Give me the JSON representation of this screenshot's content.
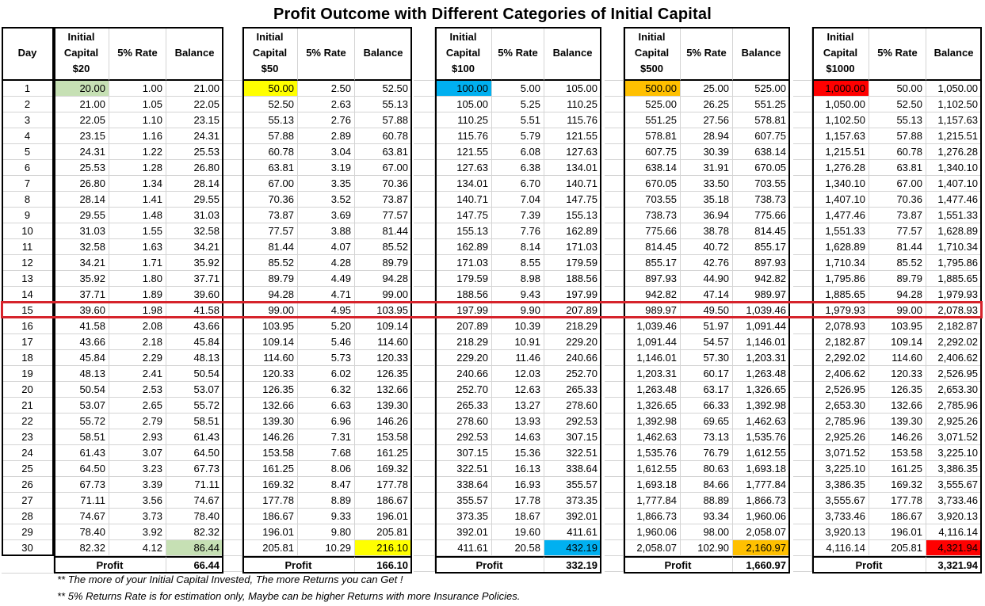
{
  "title": "Profit Outcome with Different Categories of Initial Capital",
  "day_header": "Day",
  "days": [
    1,
    2,
    3,
    4,
    5,
    6,
    7,
    8,
    9,
    10,
    11,
    12,
    13,
    14,
    15,
    16,
    17,
    18,
    19,
    20,
    21,
    22,
    23,
    24,
    25,
    26,
    27,
    28,
    29,
    30
  ],
  "highlighted_day": 15,
  "rate_header": "5% Rate",
  "balance_header": "Balance",
  "profit_label": "Profit",
  "colors": {
    "green": "#c6e0b4",
    "yellow": "#ffff00",
    "blue": "#00b0f0",
    "orange": "#ffc000",
    "red": "#ff0000"
  },
  "blocks": [
    {
      "capital_header": [
        "Initial",
        "Capital",
        "$20"
      ],
      "color": "green",
      "capital": [
        "20.00",
        "21.00",
        "22.05",
        "23.15",
        "24.31",
        "25.53",
        "26.80",
        "28.14",
        "29.55",
        "31.03",
        "32.58",
        "34.21",
        "35.92",
        "37.71",
        "39.60",
        "41.58",
        "43.66",
        "45.84",
        "48.13",
        "50.54",
        "53.07",
        "55.72",
        "58.51",
        "61.43",
        "64.50",
        "67.73",
        "71.11",
        "74.67",
        "78.40",
        "82.32"
      ],
      "rate": [
        "1.00",
        "1.05",
        "1.10",
        "1.16",
        "1.22",
        "1.28",
        "1.34",
        "1.41",
        "1.48",
        "1.55",
        "1.63",
        "1.71",
        "1.80",
        "1.89",
        "1.98",
        "2.08",
        "2.18",
        "2.29",
        "2.41",
        "2.53",
        "2.65",
        "2.79",
        "2.93",
        "3.07",
        "3.23",
        "3.39",
        "3.56",
        "3.73",
        "3.92",
        "4.12"
      ],
      "balance": [
        "21.00",
        "22.05",
        "23.15",
        "24.31",
        "25.53",
        "26.80",
        "28.14",
        "29.55",
        "31.03",
        "32.58",
        "34.21",
        "35.92",
        "37.71",
        "39.60",
        "41.58",
        "43.66",
        "45.84",
        "48.13",
        "50.54",
        "53.07",
        "55.72",
        "58.51",
        "61.43",
        "64.50",
        "67.73",
        "71.11",
        "74.67",
        "78.40",
        "82.32",
        "86.44"
      ],
      "profit": "66.44"
    },
    {
      "capital_header": [
        "Initial",
        "Capital",
        "$50"
      ],
      "color": "yellow",
      "capital": [
        "50.00",
        "52.50",
        "55.13",
        "57.88",
        "60.78",
        "63.81",
        "67.00",
        "70.36",
        "73.87",
        "77.57",
        "81.44",
        "85.52",
        "89.79",
        "94.28",
        "99.00",
        "103.95",
        "109.14",
        "114.60",
        "120.33",
        "126.35",
        "132.66",
        "139.30",
        "146.26",
        "153.58",
        "161.25",
        "169.32",
        "177.78",
        "186.67",
        "196.01",
        "205.81"
      ],
      "rate": [
        "2.50",
        "2.63",
        "2.76",
        "2.89",
        "3.04",
        "3.19",
        "3.35",
        "3.52",
        "3.69",
        "3.88",
        "4.07",
        "4.28",
        "4.49",
        "4.71",
        "4.95",
        "5.20",
        "5.46",
        "5.73",
        "6.02",
        "6.32",
        "6.63",
        "6.96",
        "7.31",
        "7.68",
        "8.06",
        "8.47",
        "8.89",
        "9.33",
        "9.80",
        "10.29"
      ],
      "balance": [
        "52.50",
        "55.13",
        "57.88",
        "60.78",
        "63.81",
        "67.00",
        "70.36",
        "73.87",
        "77.57",
        "81.44",
        "85.52",
        "89.79",
        "94.28",
        "99.00",
        "103.95",
        "109.14",
        "114.60",
        "120.33",
        "126.35",
        "132.66",
        "139.30",
        "146.26",
        "153.58",
        "161.25",
        "169.32",
        "177.78",
        "186.67",
        "196.01",
        "205.81",
        "216.10"
      ],
      "profit": "166.10"
    },
    {
      "capital_header": [
        "Initial",
        "Capital",
        "$100"
      ],
      "color": "blue",
      "capital": [
        "100.00",
        "105.00",
        "110.25",
        "115.76",
        "121.55",
        "127.63",
        "134.01",
        "140.71",
        "147.75",
        "155.13",
        "162.89",
        "171.03",
        "179.59",
        "188.56",
        "197.99",
        "207.89",
        "218.29",
        "229.20",
        "240.66",
        "252.70",
        "265.33",
        "278.60",
        "292.53",
        "307.15",
        "322.51",
        "338.64",
        "355.57",
        "373.35",
        "392.01",
        "411.61"
      ],
      "rate": [
        "5.00",
        "5.25",
        "5.51",
        "5.79",
        "6.08",
        "6.38",
        "6.70",
        "7.04",
        "7.39",
        "7.76",
        "8.14",
        "8.55",
        "8.98",
        "9.43",
        "9.90",
        "10.39",
        "10.91",
        "11.46",
        "12.03",
        "12.63",
        "13.27",
        "13.93",
        "14.63",
        "15.36",
        "16.13",
        "16.93",
        "17.78",
        "18.67",
        "19.60",
        "20.58"
      ],
      "balance": [
        "105.00",
        "110.25",
        "115.76",
        "121.55",
        "127.63",
        "134.01",
        "140.71",
        "147.75",
        "155.13",
        "162.89",
        "171.03",
        "179.59",
        "188.56",
        "197.99",
        "207.89",
        "218.29",
        "229.20",
        "240.66",
        "252.70",
        "265.33",
        "278.60",
        "292.53",
        "307.15",
        "322.51",
        "338.64",
        "355.57",
        "373.35",
        "392.01",
        "411.61",
        "432.19"
      ],
      "profit": "332.19"
    },
    {
      "capital_header": [
        "Initial",
        "Capital",
        "$500"
      ],
      "color": "orange",
      "capital": [
        "500.00",
        "525.00",
        "551.25",
        "578.81",
        "607.75",
        "638.14",
        "670.05",
        "703.55",
        "738.73",
        "775.66",
        "814.45",
        "855.17",
        "897.93",
        "942.82",
        "989.97",
        "1,039.46",
        "1,091.44",
        "1,146.01",
        "1,203.31",
        "1,263.48",
        "1,326.65",
        "1,392.98",
        "1,462.63",
        "1,535.76",
        "1,612.55",
        "1,693.18",
        "1,777.84",
        "1,866.73",
        "1,960.06",
        "2,058.07"
      ],
      "rate": [
        "25.00",
        "26.25",
        "27.56",
        "28.94",
        "30.39",
        "31.91",
        "33.50",
        "35.18",
        "36.94",
        "38.78",
        "40.72",
        "42.76",
        "44.90",
        "47.14",
        "49.50",
        "51.97",
        "54.57",
        "57.30",
        "60.17",
        "63.17",
        "66.33",
        "69.65",
        "73.13",
        "76.79",
        "80.63",
        "84.66",
        "88.89",
        "93.34",
        "98.00",
        "102.90"
      ],
      "balance": [
        "525.00",
        "551.25",
        "578.81",
        "607.75",
        "638.14",
        "670.05",
        "703.55",
        "738.73",
        "775.66",
        "814.45",
        "855.17",
        "897.93",
        "942.82",
        "989.97",
        "1,039.46",
        "1,091.44",
        "1,146.01",
        "1,203.31",
        "1,263.48",
        "1,326.65",
        "1,392.98",
        "1,462.63",
        "1,535.76",
        "1,612.55",
        "1,693.18",
        "1,777.84",
        "1,866.73",
        "1,960.06",
        "2,058.07",
        "2,160.97"
      ],
      "profit": "1,660.97"
    },
    {
      "capital_header": [
        "Initial",
        "Capital",
        "$1000"
      ],
      "color": "red",
      "capital": [
        "1,000.00",
        "1,050.00",
        "1,102.50",
        "1,157.63",
        "1,215.51",
        "1,276.28",
        "1,340.10",
        "1,407.10",
        "1,477.46",
        "1,551.33",
        "1,628.89",
        "1,710.34",
        "1,795.86",
        "1,885.65",
        "1,979.93",
        "2,078.93",
        "2,182.87",
        "2,292.02",
        "2,406.62",
        "2,526.95",
        "2,653.30",
        "2,785.96",
        "2,925.26",
        "3,071.52",
        "3,225.10",
        "3,386.35",
        "3,555.67",
        "3,733.46",
        "3,920.13",
        "4,116.14"
      ],
      "rate": [
        "50.00",
        "52.50",
        "55.13",
        "57.88",
        "60.78",
        "63.81",
        "67.00",
        "70.36",
        "73.87",
        "77.57",
        "81.44",
        "85.52",
        "89.79",
        "94.28",
        "99.00",
        "103.95",
        "109.14",
        "114.60",
        "120.33",
        "126.35",
        "132.66",
        "139.30",
        "146.26",
        "153.58",
        "161.25",
        "169.32",
        "177.78",
        "186.67",
        "196.01",
        "205.81"
      ],
      "balance": [
        "1,050.00",
        "1,102.50",
        "1,157.63",
        "1,215.51",
        "1,276.28",
        "1,340.10",
        "1,407.10",
        "1,477.46",
        "1,551.33",
        "1,628.89",
        "1,710.34",
        "1,795.86",
        "1,885.65",
        "1,979.93",
        "2,078.93",
        "2,182.87",
        "2,292.02",
        "2,406.62",
        "2,526.95",
        "2,653.30",
        "2,785.96",
        "2,925.26",
        "3,071.52",
        "3,225.10",
        "3,386.35",
        "3,555.67",
        "3,733.46",
        "3,920.13",
        "4,116.14",
        "4,321.94"
      ],
      "profit": "3,321.94"
    }
  ],
  "notes": [
    "** The more of your Initial Capital Invested, The more Returns you can Get !",
    "** 5% Returns Rate is for estimation only, Maybe can be higher Returns with more Insurance Policies."
  ]
}
